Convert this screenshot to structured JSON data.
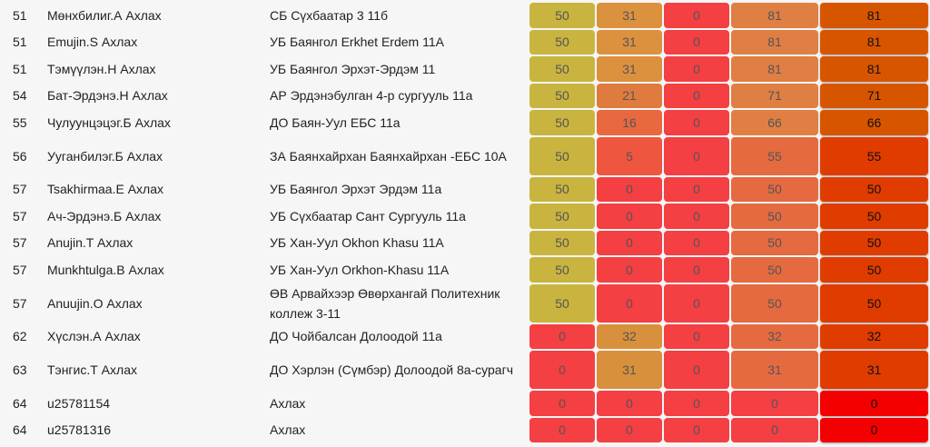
{
  "rows": [
    {
      "rank": "51",
      "name": "Мөнхбилиг.А Ахлах",
      "school": "СБ Сүхбаатар 3 11б",
      "scores": [
        "50",
        "31",
        "0",
        "81",
        "81"
      ],
      "colors": [
        "#c9b43f",
        "#dc913f",
        "#f43f43",
        "#e07f43",
        "#d85500"
      ],
      "tall": false
    },
    {
      "rank": "51",
      "name": "Emujin.S Ахлах",
      "school": "УБ Баянгол Erkhet Erdem 11A",
      "scores": [
        "50",
        "31",
        "0",
        "81",
        "81"
      ],
      "colors": [
        "#c9b43f",
        "#dc913f",
        "#f43f43",
        "#e07f43",
        "#d85500"
      ],
      "tall": false
    },
    {
      "rank": "51",
      "name": "Тэмүүлэн.Н Ахлах",
      "school": "УБ Баянгол Эрхэт-Эрдэм 11",
      "scores": [
        "50",
        "31",
        "0",
        "81",
        "81"
      ],
      "colors": [
        "#c9b43f",
        "#dc913f",
        "#f43f43",
        "#e07f43",
        "#d85500"
      ],
      "tall": false
    },
    {
      "rank": "54",
      "name": "Бат-Эрдэнэ.Н Ахлах",
      "school": "АР Эрдэнэбулган 4-р сургууль 11а",
      "scores": [
        "50",
        "21",
        "0",
        "71",
        "71"
      ],
      "colors": [
        "#c9b43f",
        "#e07b40",
        "#f43f43",
        "#e07f43",
        "#d85500"
      ],
      "tall": false
    },
    {
      "rank": "55",
      "name": "Чулуунцэцэг.Б Ахлах",
      "school": "ДО Баян-Уул ЕБС 11а",
      "scores": [
        "50",
        "16",
        "0",
        "66",
        "66"
      ],
      "colors": [
        "#c9b43f",
        "#e8683f",
        "#f43f43",
        "#e07f43",
        "#d85500"
      ],
      "tall": false
    },
    {
      "rank": "56",
      "name": "Ууганбилэг.Б Ахлах",
      "school": "ЗА Баянхайрхан Баянхайрхан -ЕБС 10А",
      "scores": [
        "50",
        "5",
        "0",
        "55",
        "55"
      ],
      "colors": [
        "#c9b43f",
        "#ef5640",
        "#f43f43",
        "#e56a40",
        "#e03c00"
      ],
      "tall": true
    },
    {
      "rank": "57",
      "name": "Tsakhirmaa.E Ахлах",
      "school": "УБ Баянгол Эрхэт Эрдэм 11а",
      "scores": [
        "50",
        "0",
        "0",
        "50",
        "50"
      ],
      "colors": [
        "#c9b43f",
        "#f43f43",
        "#f43f43",
        "#e56a40",
        "#e03c00"
      ],
      "tall": false
    },
    {
      "rank": "57",
      "name": "Ач-Эрдэнэ.Б Ахлах",
      "school": "УБ Сүхбаатар Сант Сургууль 11а",
      "scores": [
        "50",
        "0",
        "0",
        "50",
        "50"
      ],
      "colors": [
        "#c9b43f",
        "#f43f43",
        "#f43f43",
        "#e56a40",
        "#e03c00"
      ],
      "tall": false
    },
    {
      "rank": "57",
      "name": "Anujin.T Ахлах",
      "school": "УБ Хан-Уул Okhon Khasu 11A",
      "scores": [
        "50",
        "0",
        "0",
        "50",
        "50"
      ],
      "colors": [
        "#c9b43f",
        "#f43f43",
        "#f43f43",
        "#e56a40",
        "#e03c00"
      ],
      "tall": false
    },
    {
      "rank": "57",
      "name": "Munkhtulga.B Ахлах",
      "school": "УБ Хан-Уул Orkhon-Khasu 11A",
      "scores": [
        "50",
        "0",
        "0",
        "50",
        "50"
      ],
      "colors": [
        "#c9b43f",
        "#f43f43",
        "#f43f43",
        "#e56a40",
        "#e03c00"
      ],
      "tall": false
    },
    {
      "rank": "57",
      "name": "Anuujin.O Ахлах",
      "school": "ӨВ Арвайхээр Өвөрхангай Политехник коллеж 3-11",
      "scores": [
        "50",
        "0",
        "0",
        "50",
        "50"
      ],
      "colors": [
        "#c9b43f",
        "#f43f43",
        "#f43f43",
        "#e56a40",
        "#e03c00"
      ],
      "tall": true
    },
    {
      "rank": "62",
      "name": "Хүслэн.А Ахлах",
      "school": "ДО Чойбалсан Долоодой 11а",
      "scores": [
        "0",
        "32",
        "0",
        "32",
        "32"
      ],
      "colors": [
        "#f43f43",
        "#d9903c",
        "#f43f43",
        "#e56a40",
        "#e03c00"
      ],
      "tall": false
    },
    {
      "rank": "63",
      "name": "Тэнгис.Т Ахлах",
      "school": "ДО Хэрлэн (Сүмбэр) Долоодой 8а-сурагч",
      "scores": [
        "0",
        "31",
        "0",
        "31",
        "31"
      ],
      "colors": [
        "#f43f43",
        "#d9903c",
        "#f43f43",
        "#e56a40",
        "#e03c00"
      ],
      "tall": true
    },
    {
      "rank": "64",
      "name": "u25781154",
      "school": "Ахлах",
      "scores": [
        "0",
        "0",
        "0",
        "0",
        "0"
      ],
      "colors": [
        "#f43f43",
        "#f43f43",
        "#f43f43",
        "#f43f43",
        "#f40000"
      ],
      "tall": false
    },
    {
      "rank": "64",
      "name": "u25781316",
      "school": "Ахлах",
      "scores": [
        "0",
        "0",
        "0",
        "0",
        "0"
      ],
      "colors": [
        "#f43f43",
        "#f43f43",
        "#f43f43",
        "#f43f43",
        "#f40000"
      ],
      "tall": false
    }
  ]
}
